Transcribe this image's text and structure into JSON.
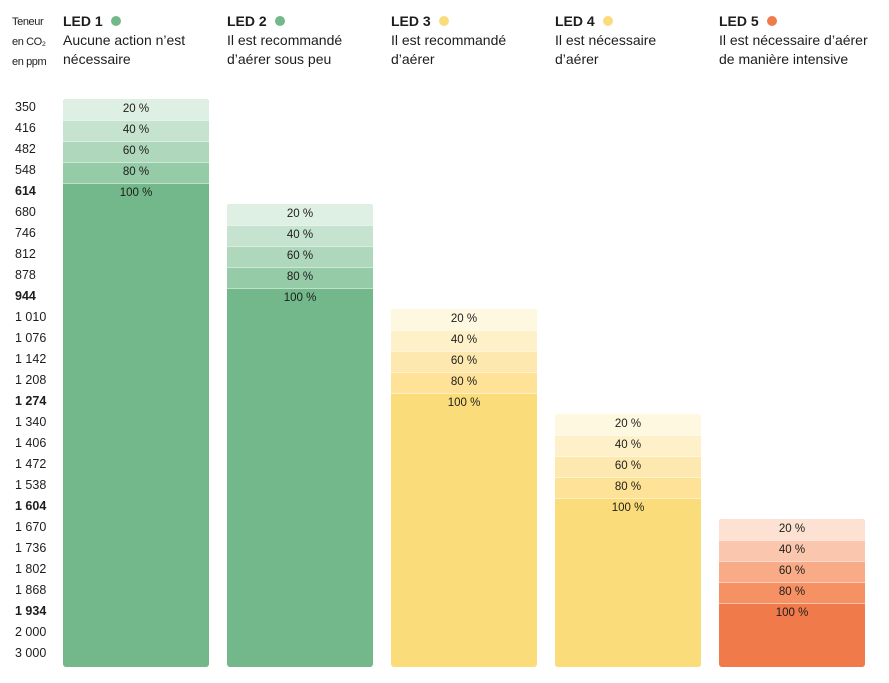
{
  "chart_data": {
    "type": "bar",
    "title": "",
    "ylabel_lines": [
      "Teneur",
      "en CO₂",
      "en ppm"
    ],
    "y_ticks": [
      "350",
      "416",
      "482",
      "548",
      "614",
      "680",
      "746",
      "812",
      "878",
      "944",
      "1 010",
      "1 076",
      "1 142",
      "1 208",
      "1 274",
      "1 340",
      "1 406",
      "1 472",
      "1 538",
      "1 604",
      "1 670",
      "1 736",
      "1 802",
      "1 868",
      "1 934",
      "2 000",
      "3 000"
    ],
    "y_ticks_bold": [
      "614",
      "944",
      "1 274",
      "1 604",
      "1 934"
    ],
    "grid": false,
    "legend": "none",
    "categories": [
      "LED 1",
      "LED 2",
      "LED 3",
      "LED 4",
      "LED 5"
    ],
    "series": [
      {
        "led": "LED 1",
        "description_lines": [
          "Aucune action n’est",
          "nécessaire"
        ],
        "dot_color": "#73b88b",
        "colors": [
          "#deefe3",
          "#c6e3cf",
          "#aed7bb",
          "#95cba7",
          "#73b88b"
        ],
        "levels": [
          {
            "label": "20 %",
            "ppm": 350
          },
          {
            "label": "40 %",
            "ppm": 416
          },
          {
            "label": "60 %",
            "ppm": 482
          },
          {
            "label": "80 %",
            "ppm": 548
          },
          {
            "label": "100 %",
            "ppm": 614
          }
        ],
        "range_ppm": [
          350,
          3000
        ]
      },
      {
        "led": "LED 2",
        "description_lines": [
          "Il est recommandé",
          "d’aérer sous peu"
        ],
        "dot_color": "#73b88b",
        "colors": [
          "#deefe3",
          "#c6e3cf",
          "#aed7bb",
          "#95cba7",
          "#73b88b"
        ],
        "levels": [
          {
            "label": "20 %",
            "ppm": 680
          },
          {
            "label": "40 %",
            "ppm": 746
          },
          {
            "label": "60 %",
            "ppm": 812
          },
          {
            "label": "80 %",
            "ppm": 878
          },
          {
            "label": "100 %",
            "ppm": 944
          }
        ],
        "range_ppm": [
          680,
          3000
        ]
      },
      {
        "led": "LED 3",
        "description_lines": [
          "Il est recommandé",
          "d’aérer"
        ],
        "dot_color": "#fbdc7b",
        "colors": [
          "#fef8e0",
          "#fef1ca",
          "#fde9b0",
          "#fde297",
          "#fbdc7b"
        ],
        "levels": [
          {
            "label": "20 %",
            "ppm": 1010
          },
          {
            "label": "40 %",
            "ppm": 1076
          },
          {
            "label": "60 %",
            "ppm": 1142
          },
          {
            "label": "80 %",
            "ppm": 1208
          },
          {
            "label": "100 %",
            "ppm": 1274
          }
        ],
        "range_ppm": [
          1010,
          3000
        ]
      },
      {
        "led": "LED 4",
        "description_lines": [
          "Il est nécessaire",
          "d’aérer"
        ],
        "dot_color": "#fbdc7b",
        "colors": [
          "#fef8e0",
          "#fef1ca",
          "#fde9b0",
          "#fde297",
          "#fbdc7b"
        ],
        "levels": [
          {
            "label": "20 %",
            "ppm": 1340
          },
          {
            "label": "40 %",
            "ppm": 1406
          },
          {
            "label": "60 %",
            "ppm": 1472
          },
          {
            "label": "80 %",
            "ppm": 1538
          },
          {
            "label": "100 %",
            "ppm": 1604
          }
        ],
        "range_ppm": [
          1340,
          3000
        ]
      },
      {
        "led": "LED 5",
        "description_lines": [
          "Il est nécessaire d’aérer",
          "de manière intensive"
        ],
        "dot_color": "#f07a4a",
        "colors": [
          "#fde1d3",
          "#fbc6ae",
          "#f9ab87",
          "#f59163",
          "#f07a4a"
        ],
        "levels": [
          {
            "label": "20 %",
            "ppm": 1670
          },
          {
            "label": "40 %",
            "ppm": 1736
          },
          {
            "label": "60 %",
            "ppm": 1802
          },
          {
            "label": "80 %",
            "ppm": 1868
          },
          {
            "label": "100 %",
            "ppm": 1934
          }
        ],
        "range_ppm": [
          1670,
          3000
        ]
      }
    ]
  }
}
